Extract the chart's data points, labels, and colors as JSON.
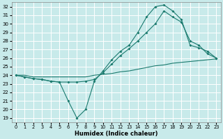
{
  "xlabel": "Humidex (Indice chaleur)",
  "bg_color": "#c8eaea",
  "grid_color": "#ffffff",
  "line_color": "#1a7a6e",
  "xlim": [
    -0.5,
    23.5
  ],
  "ylim": [
    18.5,
    32.5
  ],
  "xticks": [
    0,
    1,
    2,
    3,
    4,
    5,
    6,
    7,
    8,
    9,
    10,
    11,
    12,
    13,
    14,
    15,
    16,
    17,
    18,
    19,
    20,
    21,
    22,
    23
  ],
  "yticks": [
    19,
    20,
    21,
    22,
    23,
    24,
    25,
    26,
    27,
    28,
    29,
    30,
    31,
    32
  ],
  "line1_x": [
    0,
    1,
    2,
    3,
    4,
    5,
    6,
    7,
    8,
    9,
    10,
    11,
    12,
    13,
    14,
    15,
    16,
    17,
    18,
    19,
    20,
    21,
    22,
    23
  ],
  "line1_y": [
    24.0,
    23.8,
    23.6,
    23.5,
    23.3,
    23.2,
    21.0,
    19.0,
    20.0,
    23.3,
    24.5,
    25.8,
    26.8,
    27.5,
    29.0,
    30.8,
    32.0,
    32.2,
    31.5,
    30.5,
    27.5,
    27.2,
    26.8,
    26.0
  ],
  "line2_x": [
    0,
    1,
    2,
    3,
    4,
    5,
    6,
    7,
    8,
    9,
    10,
    11,
    12,
    13,
    14,
    15,
    16,
    17,
    18,
    19,
    20,
    21,
    22,
    23
  ],
  "line2_y": [
    24.0,
    24.0,
    23.8,
    23.8,
    23.8,
    23.8,
    23.8,
    23.8,
    23.8,
    24.0,
    24.1,
    24.2,
    24.4,
    24.5,
    24.7,
    24.9,
    25.1,
    25.2,
    25.4,
    25.5,
    25.6,
    25.7,
    25.8,
    25.9
  ],
  "line3_x": [
    0,
    1,
    2,
    3,
    4,
    5,
    6,
    7,
    8,
    9,
    10,
    11,
    12,
    13,
    14,
    15,
    16,
    17,
    18,
    19,
    20,
    21,
    22,
    23
  ],
  "line3_y": [
    24.0,
    23.8,
    23.6,
    23.5,
    23.3,
    23.2,
    23.2,
    23.2,
    23.3,
    23.5,
    24.3,
    25.3,
    26.3,
    27.1,
    28.0,
    29.0,
    30.0,
    31.5,
    30.8,
    30.2,
    28.0,
    27.5,
    26.5,
    26.0
  ]
}
